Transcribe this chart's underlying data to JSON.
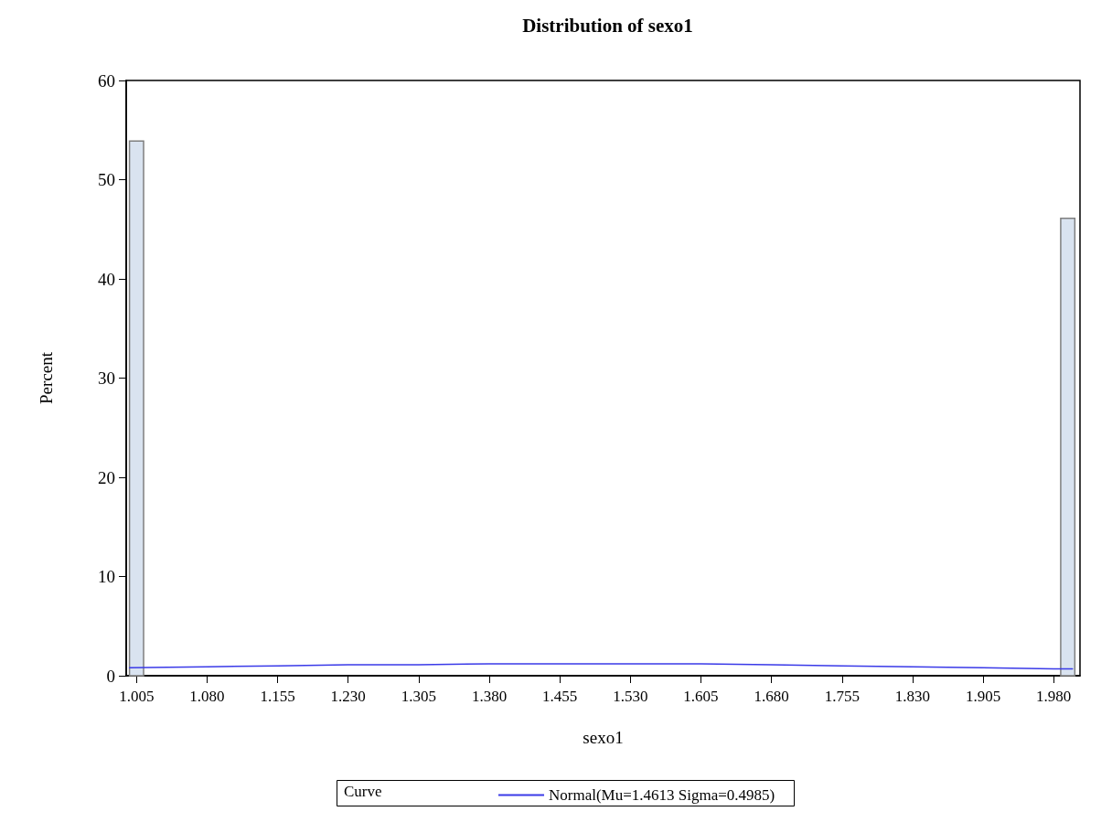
{
  "chart_data": {
    "type": "histogram",
    "title": "Distribution of sexo1",
    "xlabel": "sexo1",
    "ylabel": "Percent",
    "legend_title": "Curve",
    "legend": "bottom",
    "grid": false,
    "bins": [
      0.9975,
      1.0125,
      1.0275,
      1.0425,
      1.0575,
      1.0725,
      1.0875,
      1.1025,
      1.1175,
      1.1325,
      1.1475,
      1.1625,
      1.1775,
      1.1925,
      1.2075,
      1.2225,
      1.2375,
      1.2525,
      1.2675,
      1.2825,
      1.2975,
      1.3125,
      1.3275,
      1.3425,
      1.3575,
      1.3725,
      1.3875,
      1.4025,
      1.4175,
      1.4325,
      1.4475,
      1.4625,
      1.4775,
      1.4925,
      1.5075,
      1.5225,
      1.5375,
      1.5525,
      1.5675,
      1.5825,
      1.5975,
      1.6125,
      1.6275,
      1.6425,
      1.6575,
      1.6725,
      1.6875,
      1.7025,
      1.7175,
      1.7325,
      1.7475,
      1.7625,
      1.7775,
      1.7925,
      1.8075,
      1.8225,
      1.8375,
      1.8525,
      1.8675,
      1.8825,
      1.8975,
      1.9125,
      1.9275,
      1.9425,
      1.9575,
      1.9725,
      1.9875,
      2.0025
    ],
    "values": [
      53.9,
      0,
      0,
      0,
      0,
      0,
      0,
      0,
      0,
      0,
      0,
      0,
      0,
      0,
      0,
      0,
      0,
      0,
      0,
      0,
      0,
      0,
      0,
      0,
      0,
      0,
      0,
      0,
      0,
      0,
      0,
      0,
      0,
      0,
      0,
      0,
      0,
      0,
      0,
      0,
      0,
      0,
      0,
      0,
      0,
      0,
      0,
      0,
      0,
      0,
      0,
      0,
      0,
      0,
      0,
      0,
      0,
      0,
      0,
      0,
      0,
      0,
      0,
      0,
      0,
      0,
      46.1
    ],
    "color": "#d9e3f0",
    "series": [
      {
        "type": "line",
        "name": "Normal(Mu=1.4613 Sigma=0.4985)",
        "color": "#3a3ae8",
        "x": [
          0.9975,
          1.08,
          1.155,
          1.23,
          1.305,
          1.38,
          1.455,
          1.53,
          1.605,
          1.68,
          1.755,
          1.83,
          1.905,
          1.98,
          2.0
        ],
        "values": [
          0.8,
          0.9,
          1.0,
          1.1,
          1.1,
          1.2,
          1.2,
          1.2,
          1.2,
          1.1,
          1.0,
          0.9,
          0.8,
          0.7,
          0.7
        ]
      }
    ],
    "xlim": [
      0.994,
      2.008
    ],
    "xticks": [
      1.005,
      {
        "value": 1.08,
        "label": "1.080"
      },
      1.155,
      {
        "value": 1.23,
        "label": "1.230"
      },
      1.305,
      {
        "value": 1.38,
        "label": "1.380"
      },
      1.455,
      {
        "value": 1.53,
        "label": "1.530"
      },
      1.605,
      {
        "value": 1.68,
        "label": "1.680"
      },
      1.755,
      {
        "value": 1.83,
        "label": "1.830"
      },
      1.905,
      {
        "value": 1.98,
        "label": "1.980"
      }
    ],
    "ylim": [
      0,
      60
    ],
    "yticks": [
      0,
      10,
      20,
      30,
      40,
      50,
      60
    ]
  }
}
